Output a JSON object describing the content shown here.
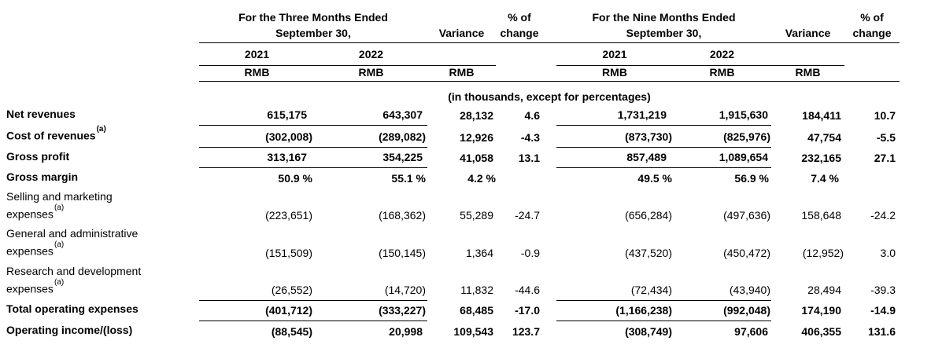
{
  "header": {
    "three_months": {
      "line1": "For the Three Months Ended",
      "line2": "September 30,"
    },
    "nine_months": {
      "line1": "For the Nine Months Ended",
      "line2": "September 30,"
    },
    "variance": "Variance",
    "pct_of": "% of",
    "change": "change",
    "year_2021": "2021",
    "year_2022": "2022",
    "rmb": "RMB",
    "units_note": "(in thousands, except for percentages)"
  },
  "rows": [
    {
      "label": "Net revenues",
      "bold": true,
      "rule_below": true,
      "values": [
        "615,175",
        "643,307",
        "28,132",
        "4.6",
        "1,731,219",
        "1,915,630",
        "184,411",
        "10.7"
      ]
    },
    {
      "label": "Cost of revenues",
      "sup": "(a)",
      "bold": true,
      "rule_below": true,
      "values": [
        "(302,008)",
        "(289,082)",
        "12,926",
        "-4.3",
        "(873,730)",
        "(825,976)",
        "47,754",
        "-5.5"
      ]
    },
    {
      "label": "Gross profit",
      "bold": true,
      "rule_below": true,
      "values": [
        "313,167",
        "354,225",
        "41,058",
        "13.1",
        "857,489",
        "1,089,654",
        "232,165",
        "27.1"
      ]
    },
    {
      "label": "Gross margin",
      "bold": true,
      "rule_below": false,
      "values": [
        "50.9 %",
        "55.1 %",
        "4.2 %",
        "",
        "49.5 %",
        "56.9 %",
        "7.4 %",
        ""
      ]
    },
    {
      "label": "Selling and marketing",
      "label_line2": "expenses",
      "sup": "(a)",
      "bold": false,
      "rule_below": false,
      "values": [
        "(223,651)",
        "(168,362)",
        "55,289",
        "-24.7",
        "(656,284)",
        "(497,636)",
        "158,648",
        "-24.2"
      ]
    },
    {
      "label": "General and administrative",
      "label_line2": "expenses",
      "sup": "(a)",
      "bold": false,
      "rule_below": false,
      "values": [
        "(151,509)",
        "(150,145)",
        "1,364",
        "-0.9",
        "(437,520)",
        "(450,472)",
        "(12,952)",
        "3.0"
      ]
    },
    {
      "label": "Research and development",
      "label_line2": "expenses",
      "sup": "(a)",
      "bold": false,
      "rule_below": true,
      "values": [
        "(26,552)",
        "(14,720)",
        "11,832",
        "-44.6",
        "(72,434)",
        "(43,940)",
        "28,494",
        "-39.3"
      ]
    },
    {
      "label": "Total operating expenses",
      "bold": true,
      "rule_below": true,
      "values": [
        "(401,712)",
        "(333,227)",
        "68,485",
        "-17.0",
        "(1,166,238)",
        "(992,048)",
        "174,190",
        "-14.9"
      ]
    },
    {
      "label": "Operating income/(loss)",
      "bold": true,
      "rule_below": false,
      "values": [
        "(88,545)",
        "20,998",
        "109,543",
        "123.7",
        "(308,749)",
        "97,606",
        "406,355",
        "131.6"
      ]
    }
  ]
}
